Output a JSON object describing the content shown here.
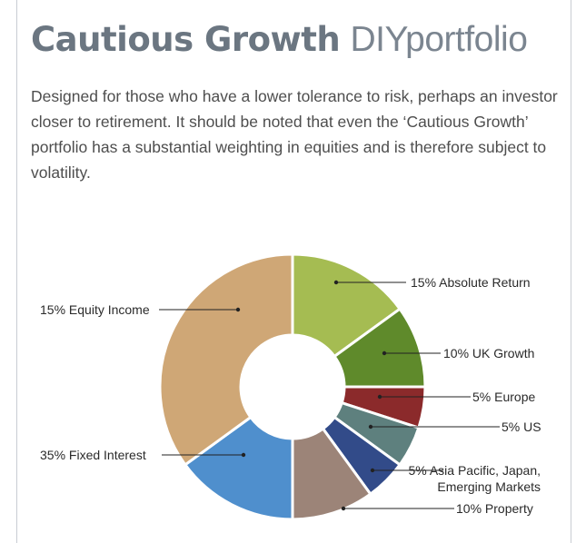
{
  "title": "Cautious Growth",
  "title_suffix": "DIYportfolio",
  "description": "Designed for those who have a lower tolerance to risk, perhaps an investor closer to retirement. It should be noted that even the ‘Cautious Growth’ portfolio has a substantial weighting in equities and is therefore subject to volatility.",
  "chart_data": {
    "type": "donut",
    "categories": [
      "Absolute Return",
      "UK Growth",
      "Europe",
      "US",
      "Asia Pacific, Japan, Emerging Markets",
      "Property",
      "Equity Income",
      "Fixed Interest"
    ],
    "values": [
      15,
      10,
      5,
      5,
      5,
      10,
      15,
      35
    ],
    "value_labels": [
      "15%",
      "10%",
      "5%",
      "5%",
      "5%",
      "10%",
      "15%",
      "35%"
    ],
    "colors": [
      "#a5bc52",
      "#5f8a2b",
      "#8b2a2b",
      "#5e807e",
      "#324b89",
      "#9c8478",
      "#4f8fcd",
      "#cfa776"
    ]
  }
}
